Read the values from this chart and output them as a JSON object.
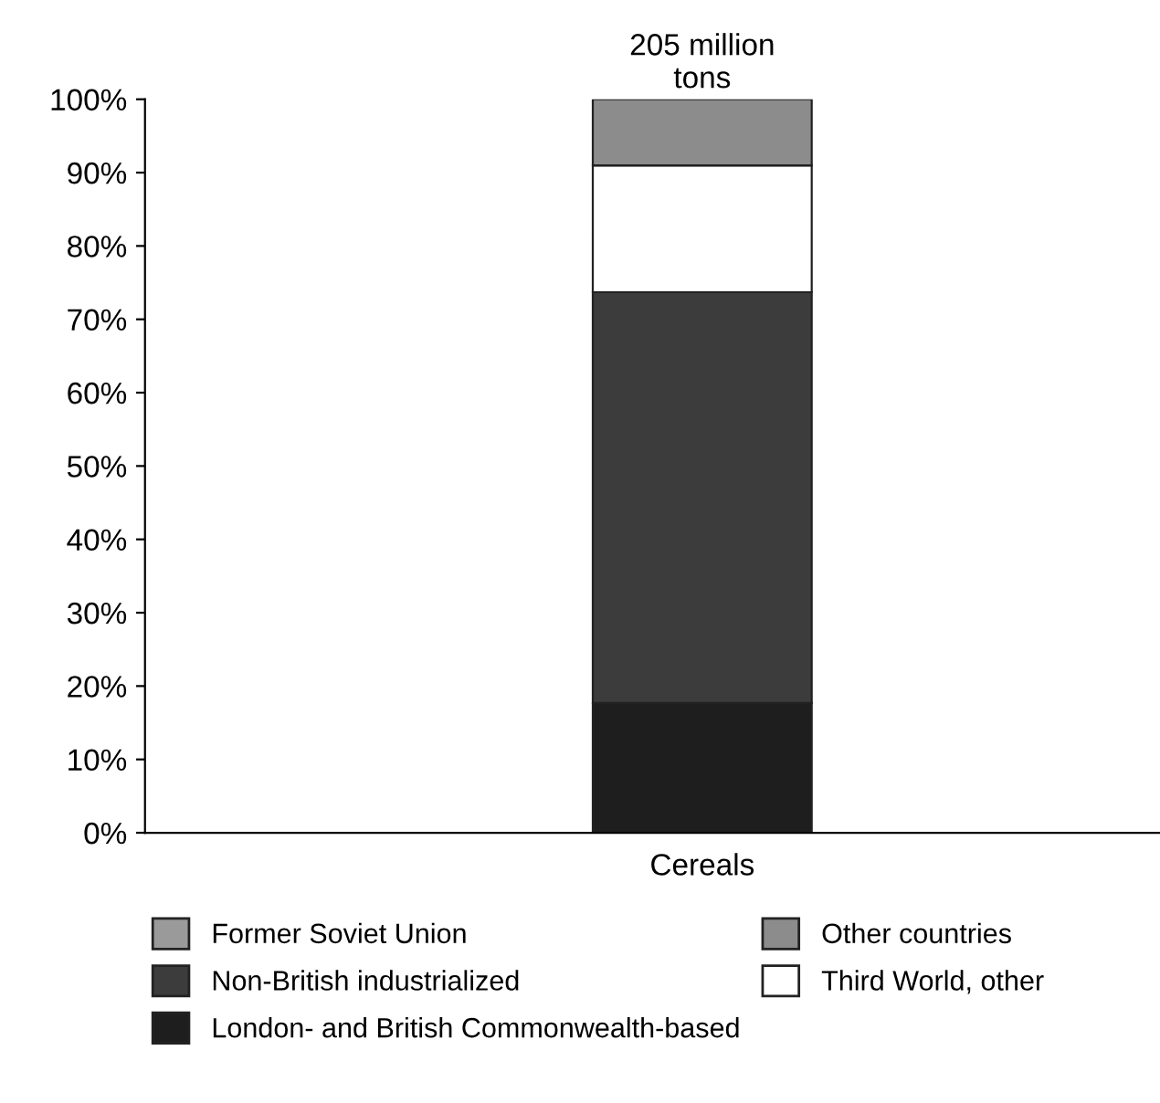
{
  "chart_data": {
    "type": "bar",
    "stacked": true,
    "categories": [
      "Cereals"
    ],
    "series": [
      {
        "name": "London- and British Commonwealth-based",
        "color": "#1e1e1e",
        "values": [
          17.7
        ]
      },
      {
        "name": "Non-British industrialized",
        "color": "#3c3c3c",
        "values": [
          56
        ]
      },
      {
        "name": "Third World, other",
        "color": "#ffffff",
        "values": [
          17.3
        ]
      },
      {
        "name": "Former Soviet Union",
        "color": "#9a9a9a",
        "values": [
          0
        ]
      },
      {
        "name": "Other countries",
        "color": "#8c8c8c",
        "values": [
          9
        ]
      }
    ],
    "annotations": [
      {
        "text": "205 million\ntons",
        "x": "Cereals",
        "y": 100
      }
    ],
    "ylim": [
      0,
      100
    ],
    "yticks": [
      {
        "value": 0,
        "label": "0%"
      },
      {
        "value": 10,
        "label": "10%"
      },
      {
        "value": 20,
        "label": "20%"
      },
      {
        "value": 30,
        "label": "30%"
      },
      {
        "value": 40,
        "label": "40%"
      },
      {
        "value": 50,
        "label": "50%"
      },
      {
        "value": 60,
        "label": "60%"
      },
      {
        "value": 70,
        "label": "70%"
      },
      {
        "value": 80,
        "label": "80%"
      },
      {
        "value": 90,
        "label": "90%"
      },
      {
        "value": 100,
        "label": "100%"
      }
    ],
    "grid": false,
    "legend": "bottom"
  }
}
